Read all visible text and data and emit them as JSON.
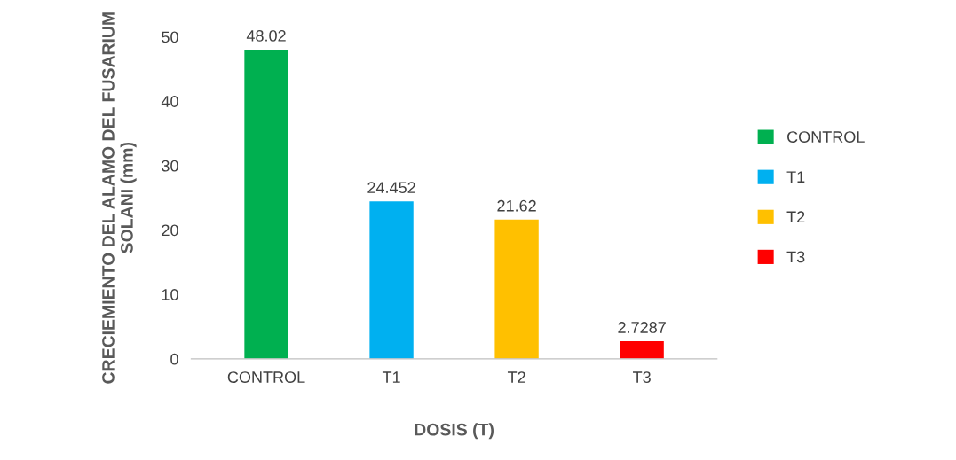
{
  "chart_data": {
    "type": "bar",
    "xlabel": "DOSIS (T)",
    "ylabel": "CRECIEMIENTO DEL ALAMO DEL FUSARIUM SOLANI (mm)",
    "categories": [
      "CONTROL",
      "T1",
      "T2",
      "T3"
    ],
    "series": [
      {
        "name": "CONTROL",
        "color": "#00b050",
        "values": [
          48.02,
          null,
          null,
          null
        ]
      },
      {
        "name": "T1",
        "color": "#00b0f0",
        "values": [
          null,
          24.452,
          null,
          null
        ]
      },
      {
        "name": "T2",
        "color": "#ffc000",
        "values": [
          null,
          null,
          21.62,
          null
        ]
      },
      {
        "name": "T3",
        "color": "#ff0000",
        "values": [
          null,
          null,
          null,
          2.7287
        ]
      }
    ],
    "ylim": [
      0,
      50
    ],
    "yticks": [
      0,
      10,
      20,
      30,
      40,
      50
    ],
    "data_labels": true,
    "grid": false,
    "legend": "right"
  }
}
